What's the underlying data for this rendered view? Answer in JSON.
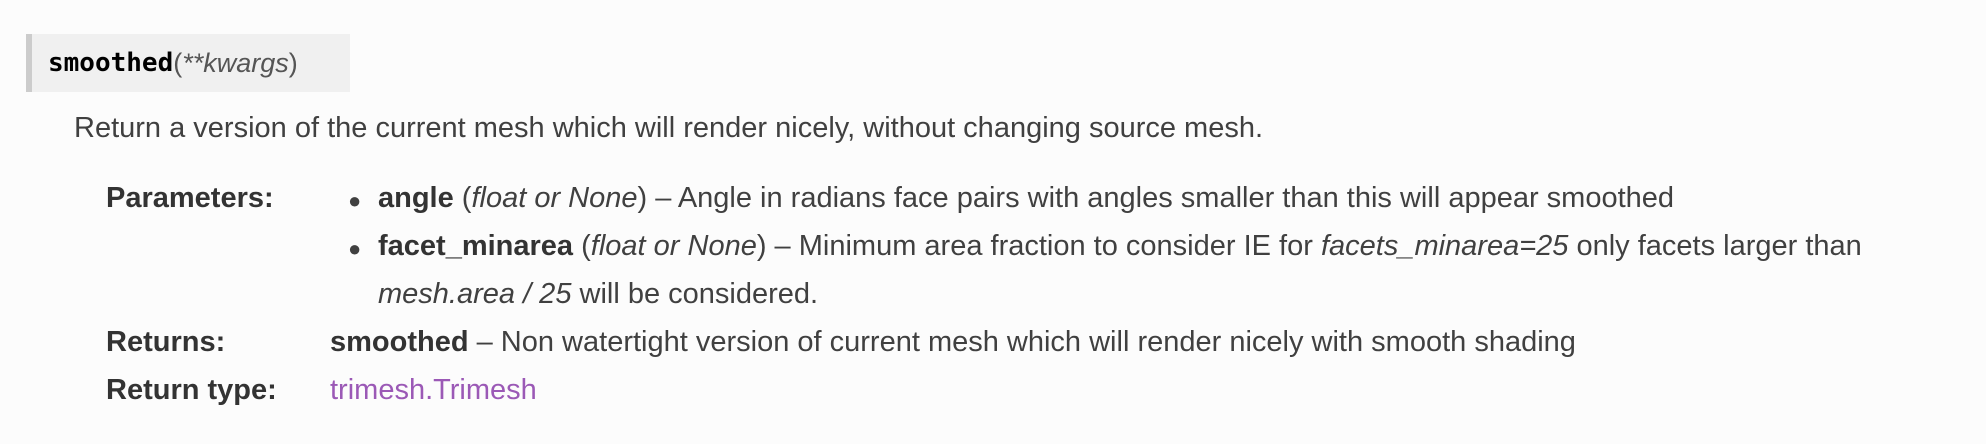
{
  "signature": {
    "name": "smoothed",
    "open_paren": "(",
    "param": "**kwargs",
    "close_paren": ")"
  },
  "description": "Return a version of the current mesh which will render nicely, without changing source mesh.",
  "fields": {
    "parameters_label": "Parameters:",
    "returns_label": "Returns:",
    "return_type_label": "Return type:"
  },
  "parameters": [
    {
      "name": "angle",
      "type_open": " (",
      "type": "float or None",
      "type_close": ")",
      "text": " – Angle in radians face pairs with angles smaller than this will appear smoothed"
    },
    {
      "name": "facet_minarea",
      "type_open": " (",
      "type": "float or None",
      "type_close": ")",
      "text": " – Minimum area fraction to consider IE for ",
      "em1": "facets_minarea=25",
      "text2": " only facets larger than",
      "em2": "mesh.area / 25",
      "text3": " will be considered."
    }
  ],
  "returns": {
    "name": "smoothed",
    "text": " – Non watertight version of current mesh which will render nicely with smooth shading"
  },
  "return_type": {
    "link": "trimesh.Trimesh"
  }
}
